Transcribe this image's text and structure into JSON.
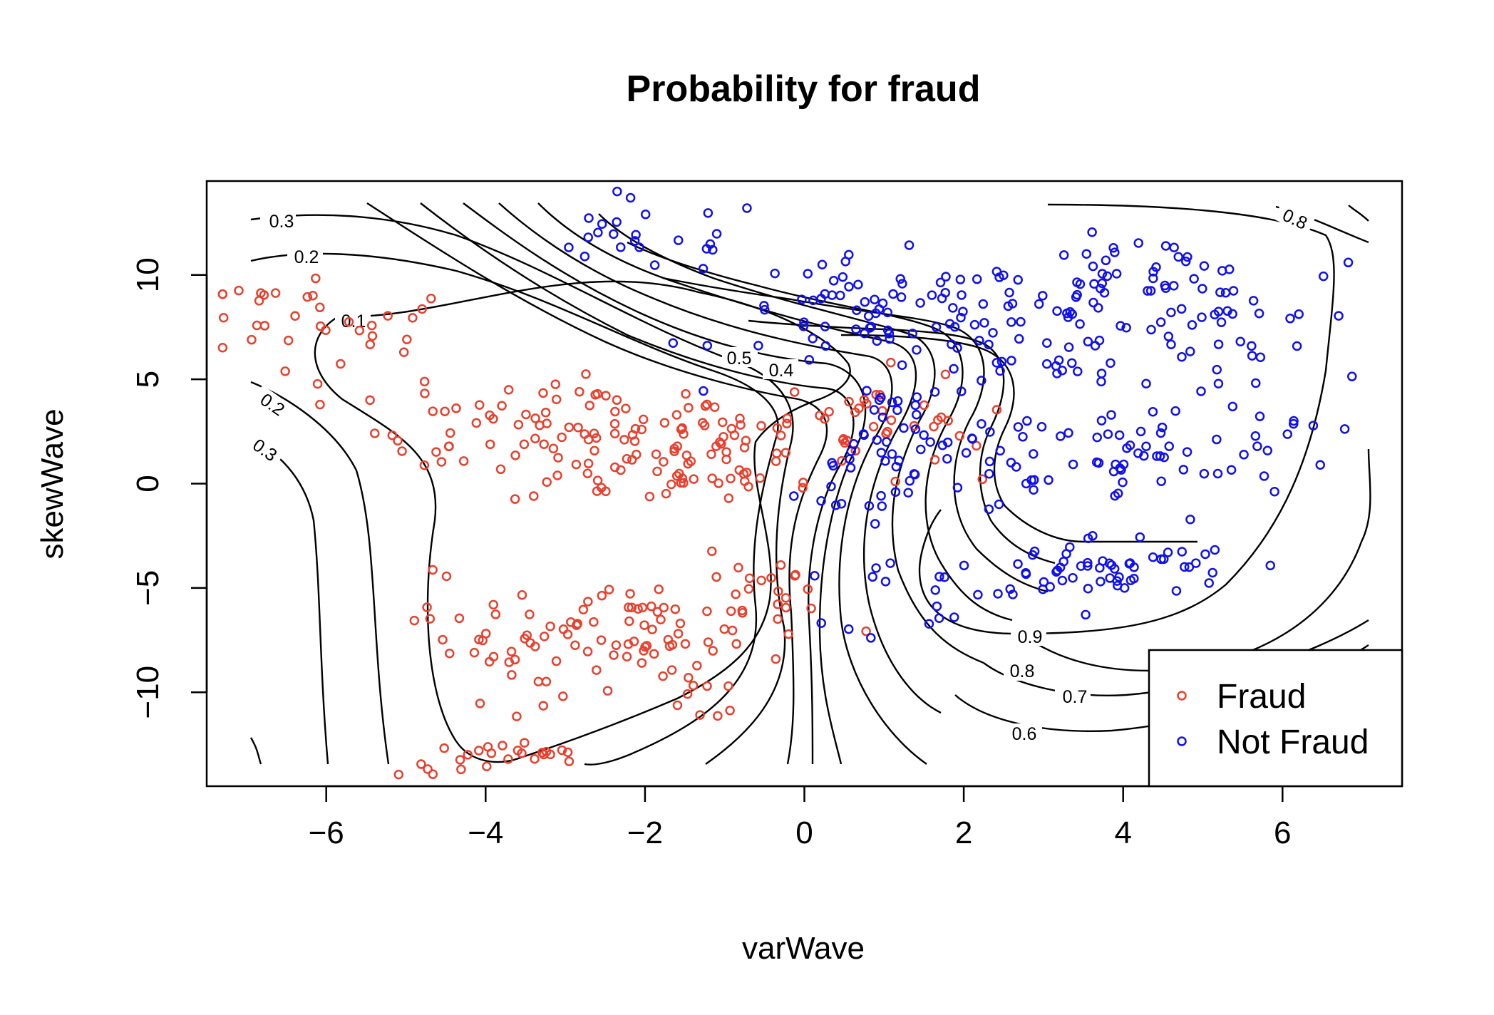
{
  "chart_data": {
    "type": "scatter",
    "title": "Probability for fraud",
    "xlabel": "varWave",
    "ylabel": "skewWave",
    "xlim": [
      -7.5,
      7.5
    ],
    "ylim": [
      -14.5,
      14.5
    ],
    "x_ticks": [
      -6,
      -4,
      -2,
      0,
      2,
      4,
      6
    ],
    "y_ticks": [
      -10,
      -5,
      0,
      5,
      10
    ],
    "x_tick_labels": [
      "−6",
      "−4",
      "−2",
      "0",
      "2",
      "4",
      "6"
    ],
    "y_tick_labels": [
      "−10",
      "−5",
      "0",
      "5",
      "10"
    ],
    "grid": false,
    "legend_position": "bottom-right",
    "legend": [
      "Fraud",
      "Not Fraud"
    ],
    "colors": {
      "Fraud": "#e8402d",
      "Not Fraud": "#1010ee",
      "contour": "#000000"
    },
    "contour_levels": [
      "0.1",
      "0.2",
      "0.3",
      "0.4",
      "0.5",
      "0.6",
      "0.7",
      "0.8",
      "0.9",
      "0.2",
      "0.3",
      "0.8"
    ],
    "series": [
      {
        "name": "Fraud",
        "marker": "open-circle",
        "clusters": [
          {
            "x": -5.8,
            "y": 7.2,
            "sx": 0.9,
            "sy": 1.3,
            "n": 28
          },
          {
            "x": -3.8,
            "y": 2.5,
            "sx": 0.8,
            "sy": 1.2,
            "n": 40
          },
          {
            "x": -2.3,
            "y": 1.5,
            "sx": 0.7,
            "sy": 1.5,
            "n": 60
          },
          {
            "x": -1.0,
            "y": 2.0,
            "sx": 0.6,
            "sy": 1.6,
            "n": 40
          },
          {
            "x": 0.6,
            "y": 2.8,
            "sx": 0.6,
            "sy": 1.3,
            "n": 30
          },
          {
            "x": 1.8,
            "y": 3.2,
            "sx": 0.5,
            "sy": 0.9,
            "n": 10
          },
          {
            "x": -2.0,
            "y": -6.8,
            "sx": 1.0,
            "sy": 1.0,
            "n": 60
          },
          {
            "x": -3.3,
            "y": -8.0,
            "sx": 0.8,
            "sy": 1.2,
            "n": 25
          },
          {
            "x": -1.5,
            "y": -9.7,
            "sx": 0.6,
            "sy": 0.8,
            "n": 15
          },
          {
            "x": -4.8,
            "y": -6.0,
            "sx": 0.5,
            "sy": 0.8,
            "n": 8
          },
          {
            "x": -3.7,
            "y": -13.2,
            "sx": 0.7,
            "sy": 0.4,
            "n": 25
          },
          {
            "x": -0.6,
            "y": -4.5,
            "sx": 0.4,
            "sy": 1.5,
            "n": 14
          },
          {
            "x": -6.8,
            "y": 9.1,
            "sx": 0.5,
            "sy": 0.3,
            "n": 8
          }
        ]
      },
      {
        "name": "Not Fraud",
        "marker": "open-circle",
        "clusters": [
          {
            "x": -2.0,
            "y": 11.8,
            "sx": 0.8,
            "sy": 0.9,
            "n": 24
          },
          {
            "x": 1.0,
            "y": 8.0,
            "sx": 1.0,
            "sy": 1.4,
            "n": 70
          },
          {
            "x": 3.3,
            "y": 7.5,
            "sx": 1.0,
            "sy": 1.5,
            "n": 60
          },
          {
            "x": 4.3,
            "y": 9.8,
            "sx": 0.8,
            "sy": 1.0,
            "n": 40
          },
          {
            "x": 5.3,
            "y": 7.5,
            "sx": 0.6,
            "sy": 1.2,
            "n": 20
          },
          {
            "x": 4.2,
            "y": 1.0,
            "sx": 0.9,
            "sy": 1.5,
            "n": 45
          },
          {
            "x": 2.5,
            "y": 1.0,
            "sx": 0.7,
            "sy": 1.5,
            "n": 25
          },
          {
            "x": 3.7,
            "y": -4.0,
            "sx": 0.9,
            "sy": 0.8,
            "n": 60
          },
          {
            "x": 1.7,
            "y": -5.5,
            "sx": 0.6,
            "sy": 1.0,
            "n": 14
          },
          {
            "x": 1.0,
            "y": 2.5,
            "sx": 0.4,
            "sy": 1.5,
            "n": 30
          },
          {
            "x": 0.3,
            "y": -0.2,
            "sx": 0.5,
            "sy": 0.9,
            "n": 14
          },
          {
            "x": 5.6,
            "y": 2.0,
            "sx": 0.5,
            "sy": 1.6,
            "n": 12
          },
          {
            "x": 6.8,
            "y": 5.2,
            "sx": 0.1,
            "sy": 0.1,
            "n": 1
          },
          {
            "x": 6.1,
            "y": 3.0,
            "sx": 0.1,
            "sy": 0.1,
            "n": 1
          }
        ]
      }
    ]
  }
}
